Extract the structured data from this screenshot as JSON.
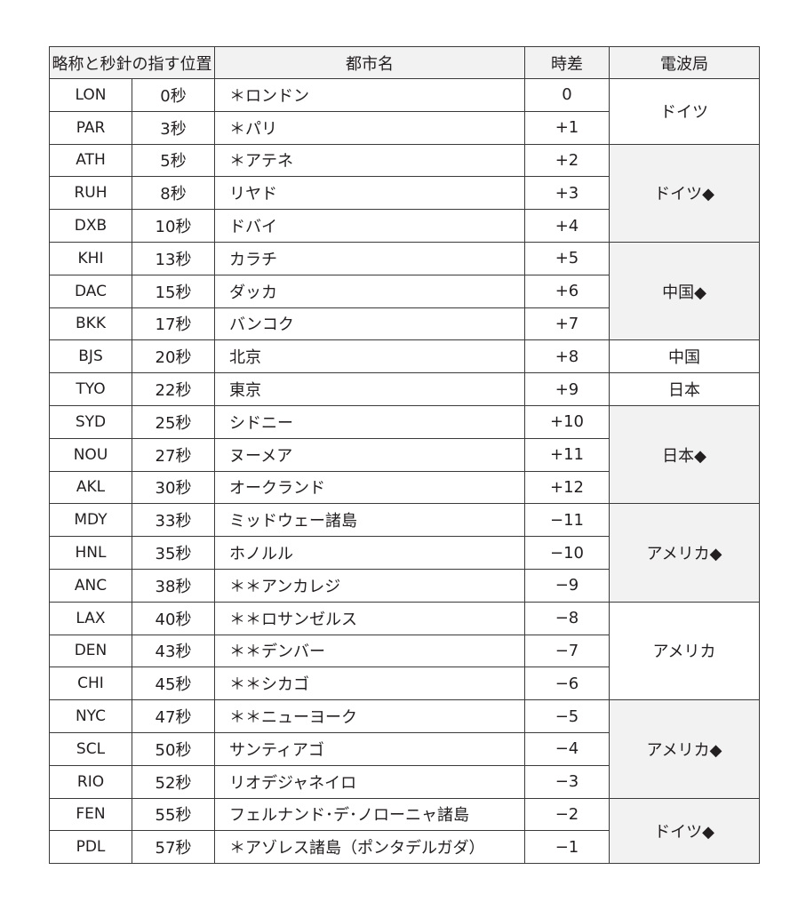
{
  "headers": {
    "abbr_seconds": "略称と秒針の指す位置",
    "city": "都市名",
    "offset": "時差",
    "station": "電波局"
  },
  "rows": [
    {
      "abbr": "LON",
      "sec": "0秒",
      "city": "＊ロンドン",
      "offset": "0"
    },
    {
      "abbr": "PAR",
      "sec": "3秒",
      "city": "＊パリ",
      "offset": "+1"
    },
    {
      "abbr": "ATH",
      "sec": "5秒",
      "city": "＊アテネ",
      "offset": "+2"
    },
    {
      "abbr": "RUH",
      "sec": "8秒",
      "city": "リヤド",
      "offset": "+3"
    },
    {
      "abbr": "DXB",
      "sec": "10秒",
      "city": "ドバイ",
      "offset": "+4"
    },
    {
      "abbr": "KHI",
      "sec": "13秒",
      "city": "カラチ",
      "offset": "+5"
    },
    {
      "abbr": "DAC",
      "sec": "15秒",
      "city": "ダッカ",
      "offset": "+6"
    },
    {
      "abbr": "BKK",
      "sec": "17秒",
      "city": "バンコク",
      "offset": "+7"
    },
    {
      "abbr": "BJS",
      "sec": "20秒",
      "city": "北京",
      "offset": "+8"
    },
    {
      "abbr": "TYO",
      "sec": "22秒",
      "city": "東京",
      "offset": "+9"
    },
    {
      "abbr": "SYD",
      "sec": "25秒",
      "city": "シドニー",
      "offset": "+10"
    },
    {
      "abbr": "NOU",
      "sec": "27秒",
      "city": "ヌーメア",
      "offset": "+11"
    },
    {
      "abbr": "AKL",
      "sec": "30秒",
      "city": "オークランド",
      "offset": "+12"
    },
    {
      "abbr": "MDY",
      "sec": "33秒",
      "city": "ミッドウェー諸島",
      "offset": "−11"
    },
    {
      "abbr": "HNL",
      "sec": "35秒",
      "city": "ホノルル",
      "offset": "−10"
    },
    {
      "abbr": "ANC",
      "sec": "38秒",
      "city": "＊＊アンカレジ",
      "offset": "−9"
    },
    {
      "abbr": "LAX",
      "sec": "40秒",
      "city": "＊＊ロサンゼルス",
      "offset": "−8"
    },
    {
      "abbr": "DEN",
      "sec": "43秒",
      "city": "＊＊デンバー",
      "offset": "−7"
    },
    {
      "abbr": "CHI",
      "sec": "45秒",
      "city": "＊＊シカゴ",
      "offset": "−6"
    },
    {
      "abbr": "NYC",
      "sec": "47秒",
      "city": "＊＊ニューヨーク",
      "offset": "−5"
    },
    {
      "abbr": "SCL",
      "sec": "50秒",
      "city": "サンティアゴ",
      "offset": "−4"
    },
    {
      "abbr": "RIO",
      "sec": "52秒",
      "city": "リオデジャネイロ",
      "offset": "−3"
    },
    {
      "abbr": "FEN",
      "sec": "55秒",
      "city": "フェルナンド･デ･ノローニャ諸島",
      "offset": "−2"
    },
    {
      "abbr": "PDL",
      "sec": "57秒",
      "city": "＊アゾレス諸島（ポンタデルガダ）",
      "offset": "−1"
    }
  ],
  "stations": [
    {
      "label": "ドイツ",
      "rows": 2,
      "shaded": false
    },
    {
      "label": "ドイツ◆",
      "rows": 3,
      "shaded": true
    },
    {
      "label": "中国◆",
      "rows": 3,
      "shaded": true
    },
    {
      "label": "中国",
      "rows": 1,
      "shaded": false
    },
    {
      "label": "日本",
      "rows": 1,
      "shaded": false
    },
    {
      "label": "日本◆",
      "rows": 3,
      "shaded": true
    },
    {
      "label": "アメリカ◆",
      "rows": 3,
      "shaded": true
    },
    {
      "label": "アメリカ",
      "rows": 3,
      "shaded": false
    },
    {
      "label": "アメリカ◆",
      "rows": 3,
      "shaded": true
    },
    {
      "label": "ドイツ◆",
      "rows": 2,
      "shaded": true
    }
  ],
  "colors": {
    "shade": "#f2f2f2",
    "border": "#3a3a3a"
  }
}
